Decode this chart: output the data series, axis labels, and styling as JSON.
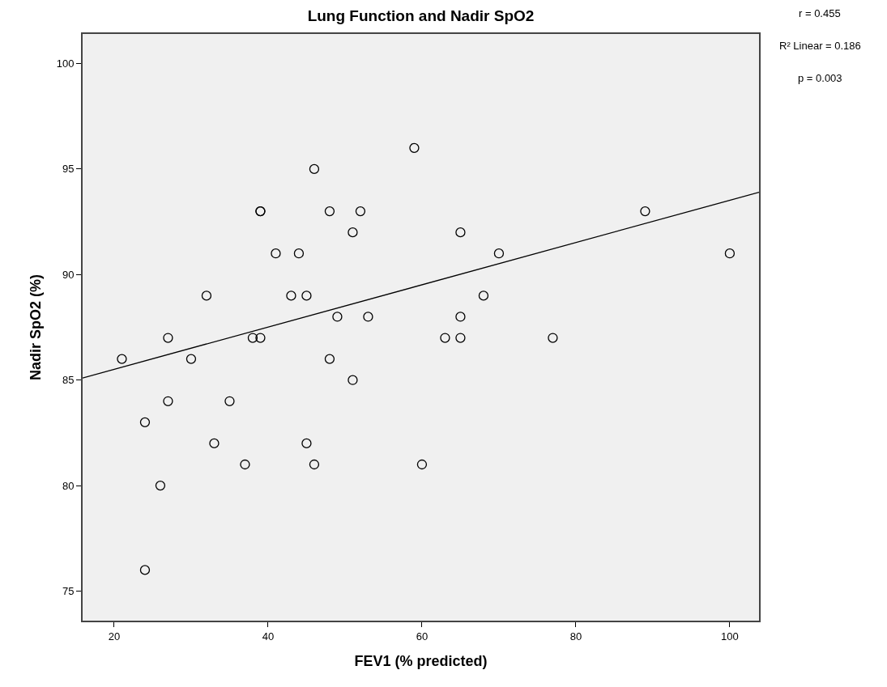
{
  "chart_data": {
    "type": "scatter",
    "title": "Lung Function and Nadir SpO2",
    "xlabel": "FEV1 (% predicted)",
    "ylabel": "Nadir SpO2 (%)",
    "xlim": [
      15.9,
      103.8
    ],
    "xticks": [
      20,
      40,
      60,
      80,
      100
    ],
    "ylim": [
      73.6,
      101.4
    ],
    "yticks": [
      75,
      80,
      85,
      90,
      95,
      100
    ],
    "grid": false,
    "annotations": [
      "r = 0.455",
      "R² Linear = 0.186",
      "p = 0.003"
    ],
    "series": [
      {
        "type": "scatter",
        "marker": "circle",
        "color": "#000000",
        "x": [
          21,
          24,
          24,
          26,
          27,
          27,
          30,
          32,
          33,
          35,
          37,
          38,
          39,
          39,
          39,
          41,
          43,
          44,
          45,
          45,
          46,
          46,
          48,
          48,
          49,
          51,
          51,
          52,
          53,
          59,
          60,
          63,
          65,
          65,
          65,
          68,
          70,
          77,
          89,
          100
        ],
        "values": [
          86,
          83,
          76,
          80,
          87,
          84,
          86,
          89,
          82,
          84,
          81,
          87,
          93,
          93,
          87,
          91,
          89,
          91,
          89,
          82,
          95,
          81,
          93,
          86,
          88,
          92,
          85,
          93,
          88,
          96,
          81,
          87,
          92,
          88,
          87,
          89,
          91,
          87,
          93,
          91
        ]
      },
      {
        "type": "line",
        "marker": "none",
        "line_style": "solid",
        "color": "#000000",
        "x": [
          15.9,
          103.8
        ],
        "values": [
          85.1,
          93.9
        ]
      }
    ]
  }
}
